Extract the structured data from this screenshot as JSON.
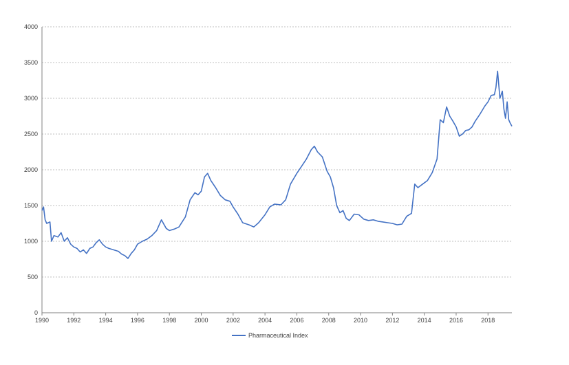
{
  "chart_data": {
    "type": "line",
    "title": "",
    "xlabel": "",
    "ylabel": "",
    "xlim": [
      1990,
      2019.5
    ],
    "ylim": [
      0,
      4000
    ],
    "x_ticks": [
      "1990",
      "1992",
      "1994",
      "1996",
      "1998",
      "2000",
      "2002",
      "2004",
      "2006",
      "2008",
      "2010",
      "2012",
      "2014",
      "2016",
      "2018"
    ],
    "y_ticks": [
      "0",
      "500",
      "1000",
      "1500",
      "2000",
      "2500",
      "3000",
      "3500",
      "4000"
    ],
    "grid": true,
    "legend_position": "bottom-center",
    "colors": {
      "series": "#4472c4"
    },
    "series": [
      {
        "name": "Pharmaceutical Index",
        "x": [
          1990.0,
          1990.1,
          1990.2,
          1990.3,
          1990.5,
          1990.6,
          1990.75,
          1991.0,
          1991.2,
          1991.4,
          1991.6,
          1991.8,
          1992.0,
          1992.2,
          1992.4,
          1992.6,
          1992.8,
          1993.0,
          1993.2,
          1993.4,
          1993.6,
          1993.8,
          1994.0,
          1994.2,
          1994.5,
          1994.8,
          1995.0,
          1995.2,
          1995.4,
          1995.6,
          1995.8,
          1996.0,
          1996.3,
          1996.6,
          1996.9,
          1997.2,
          1997.5,
          1997.8,
          1998.0,
          1998.3,
          1998.6,
          1999.0,
          1999.3,
          1999.6,
          1999.8,
          2000.0,
          2000.2,
          2000.4,
          2000.6,
          2000.9,
          2001.2,
          2001.5,
          2001.8,
          2002.0,
          2002.3,
          2002.6,
          2003.0,
          2003.3,
          2003.6,
          2004.0,
          2004.3,
          2004.6,
          2005.0,
          2005.3,
          2005.6,
          2006.0,
          2006.3,
          2006.6,
          2006.9,
          2007.1,
          2007.3,
          2007.6,
          2007.9,
          2008.1,
          2008.3,
          2008.5,
          2008.7,
          2008.9,
          2009.1,
          2009.3,
          2009.6,
          2009.9,
          2010.2,
          2010.5,
          2010.8,
          2011.1,
          2011.4,
          2011.7,
          2012.0,
          2012.3,
          2012.6,
          2012.9,
          2013.2,
          2013.4,
          2013.6,
          2013.9,
          2014.2,
          2014.5,
          2014.8,
          2015.0,
          2015.2,
          2015.4,
          2015.6,
          2015.8,
          2016.0,
          2016.2,
          2016.4,
          2016.6,
          2016.8,
          2017.0,
          2017.2,
          2017.5,
          2017.8,
          2018.0,
          2018.2,
          2018.4,
          2018.5,
          2018.6,
          2018.75,
          2018.9,
          2019.0,
          2019.1,
          2019.2,
          2019.3,
          2019.4,
          2019.5
        ],
        "values": [
          1430,
          1480,
          1300,
          1250,
          1270,
          1000,
          1080,
          1060,
          1120,
          1000,
          1050,
          960,
          920,
          900,
          850,
          880,
          830,
          900,
          920,
          980,
          1020,
          960,
          920,
          900,
          880,
          860,
          820,
          800,
          760,
          830,
          880,
          960,
          1000,
          1030,
          1080,
          1150,
          1300,
          1180,
          1150,
          1170,
          1200,
          1340,
          1580,
          1680,
          1650,
          1700,
          1900,
          1950,
          1850,
          1750,
          1640,
          1580,
          1560,
          1480,
          1380,
          1260,
          1230,
          1200,
          1260,
          1370,
          1480,
          1520,
          1510,
          1580,
          1800,
          1950,
          2050,
          2150,
          2280,
          2330,
          2250,
          2180,
          1980,
          1900,
          1750,
          1500,
          1400,
          1430,
          1320,
          1290,
          1380,
          1370,
          1310,
          1290,
          1300,
          1280,
          1270,
          1260,
          1250,
          1230,
          1240,
          1350,
          1390,
          1800,
          1750,
          1800,
          1850,
          1960,
          2150,
          2700,
          2660,
          2880,
          2750,
          2680,
          2600,
          2470,
          2500,
          2550,
          2560,
          2600,
          2680,
          2780,
          2890,
          2950,
          3040,
          3050,
          3150,
          3380,
          3000,
          3100,
          2850,
          2720,
          2950,
          2700,
          2650,
          2610
        ]
      }
    ]
  }
}
